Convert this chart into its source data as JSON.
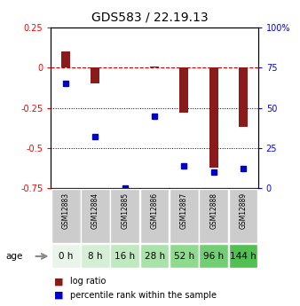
{
  "title": "GDS583 / 22.19.13",
  "samples": [
    "GSM12883",
    "GSM12884",
    "GSM12885",
    "GSM12886",
    "GSM12887",
    "GSM12888",
    "GSM12889"
  ],
  "ages": [
    "0 h",
    "8 h",
    "16 h",
    "28 h",
    "52 h",
    "96 h",
    "144 h"
  ],
  "log_ratio": [
    0.1,
    -0.1,
    0.0,
    0.01,
    -0.28,
    -0.62,
    -0.37
  ],
  "percentile_rank": [
    65,
    32,
    0,
    45,
    14,
    10,
    12
  ],
  "ylim_left": [
    -0.75,
    0.25
  ],
  "ylim_right": [
    0,
    100
  ],
  "left_yticks": [
    0.25,
    0,
    -0.25,
    -0.5,
    -0.75
  ],
  "right_yticks": [
    100,
    75,
    50,
    25,
    0
  ],
  "bar_color": "#8B1A1A",
  "dot_color": "#0000CC",
  "dashed_line_color": "#CC0000",
  "age_bg_colors": [
    "#e8f5e8",
    "#d4efd4",
    "#c0e9c0",
    "#aae3aa",
    "#90da90",
    "#72ce72",
    "#50c050"
  ],
  "gsm_bg_color": "#cccccc",
  "gsm_border_color": "#aaaaaa",
  "title_fontsize": 10,
  "tick_fontsize": 7,
  "legend_fontsize": 7,
  "age_label_fontsize": 7.5,
  "gsm_fontsize": 5.5,
  "right_tick_labels": [
    "100%",
    "75",
    "50",
    "25",
    "0"
  ]
}
